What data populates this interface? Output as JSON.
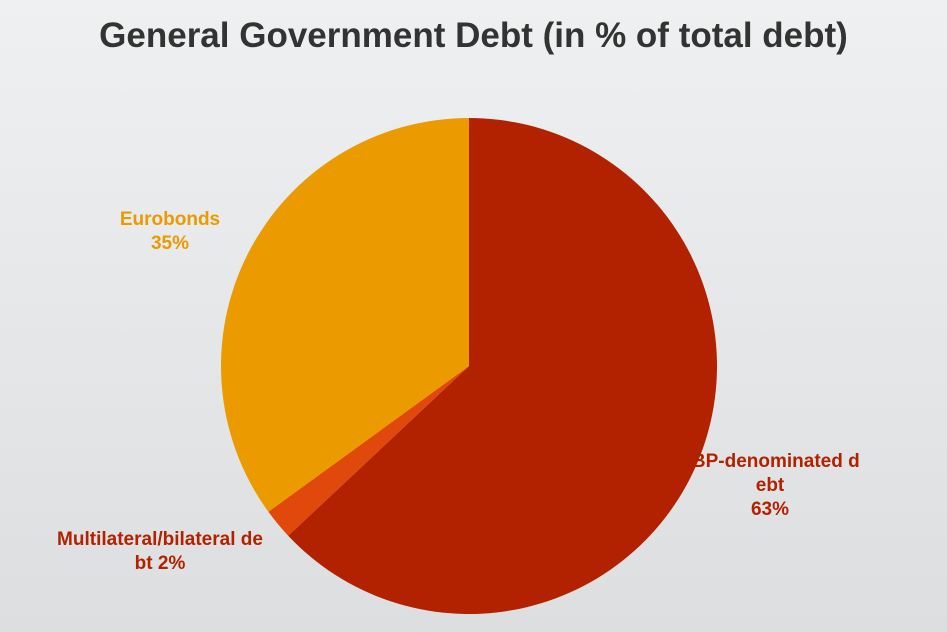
{
  "chart_data": {
    "type": "pie",
    "title": "General Government Debt (in % of total debt)",
    "categories": [
      "LBP-denominated debt",
      "Multilateral/bilateral debt",
      "Eurobonds"
    ],
    "values": [
      63,
      2,
      35
    ],
    "value_labels": [
      "63%",
      "2%",
      "35%"
    ],
    "colors": [
      "#b22200",
      "#e0480c",
      "#eb9a00"
    ]
  }
}
